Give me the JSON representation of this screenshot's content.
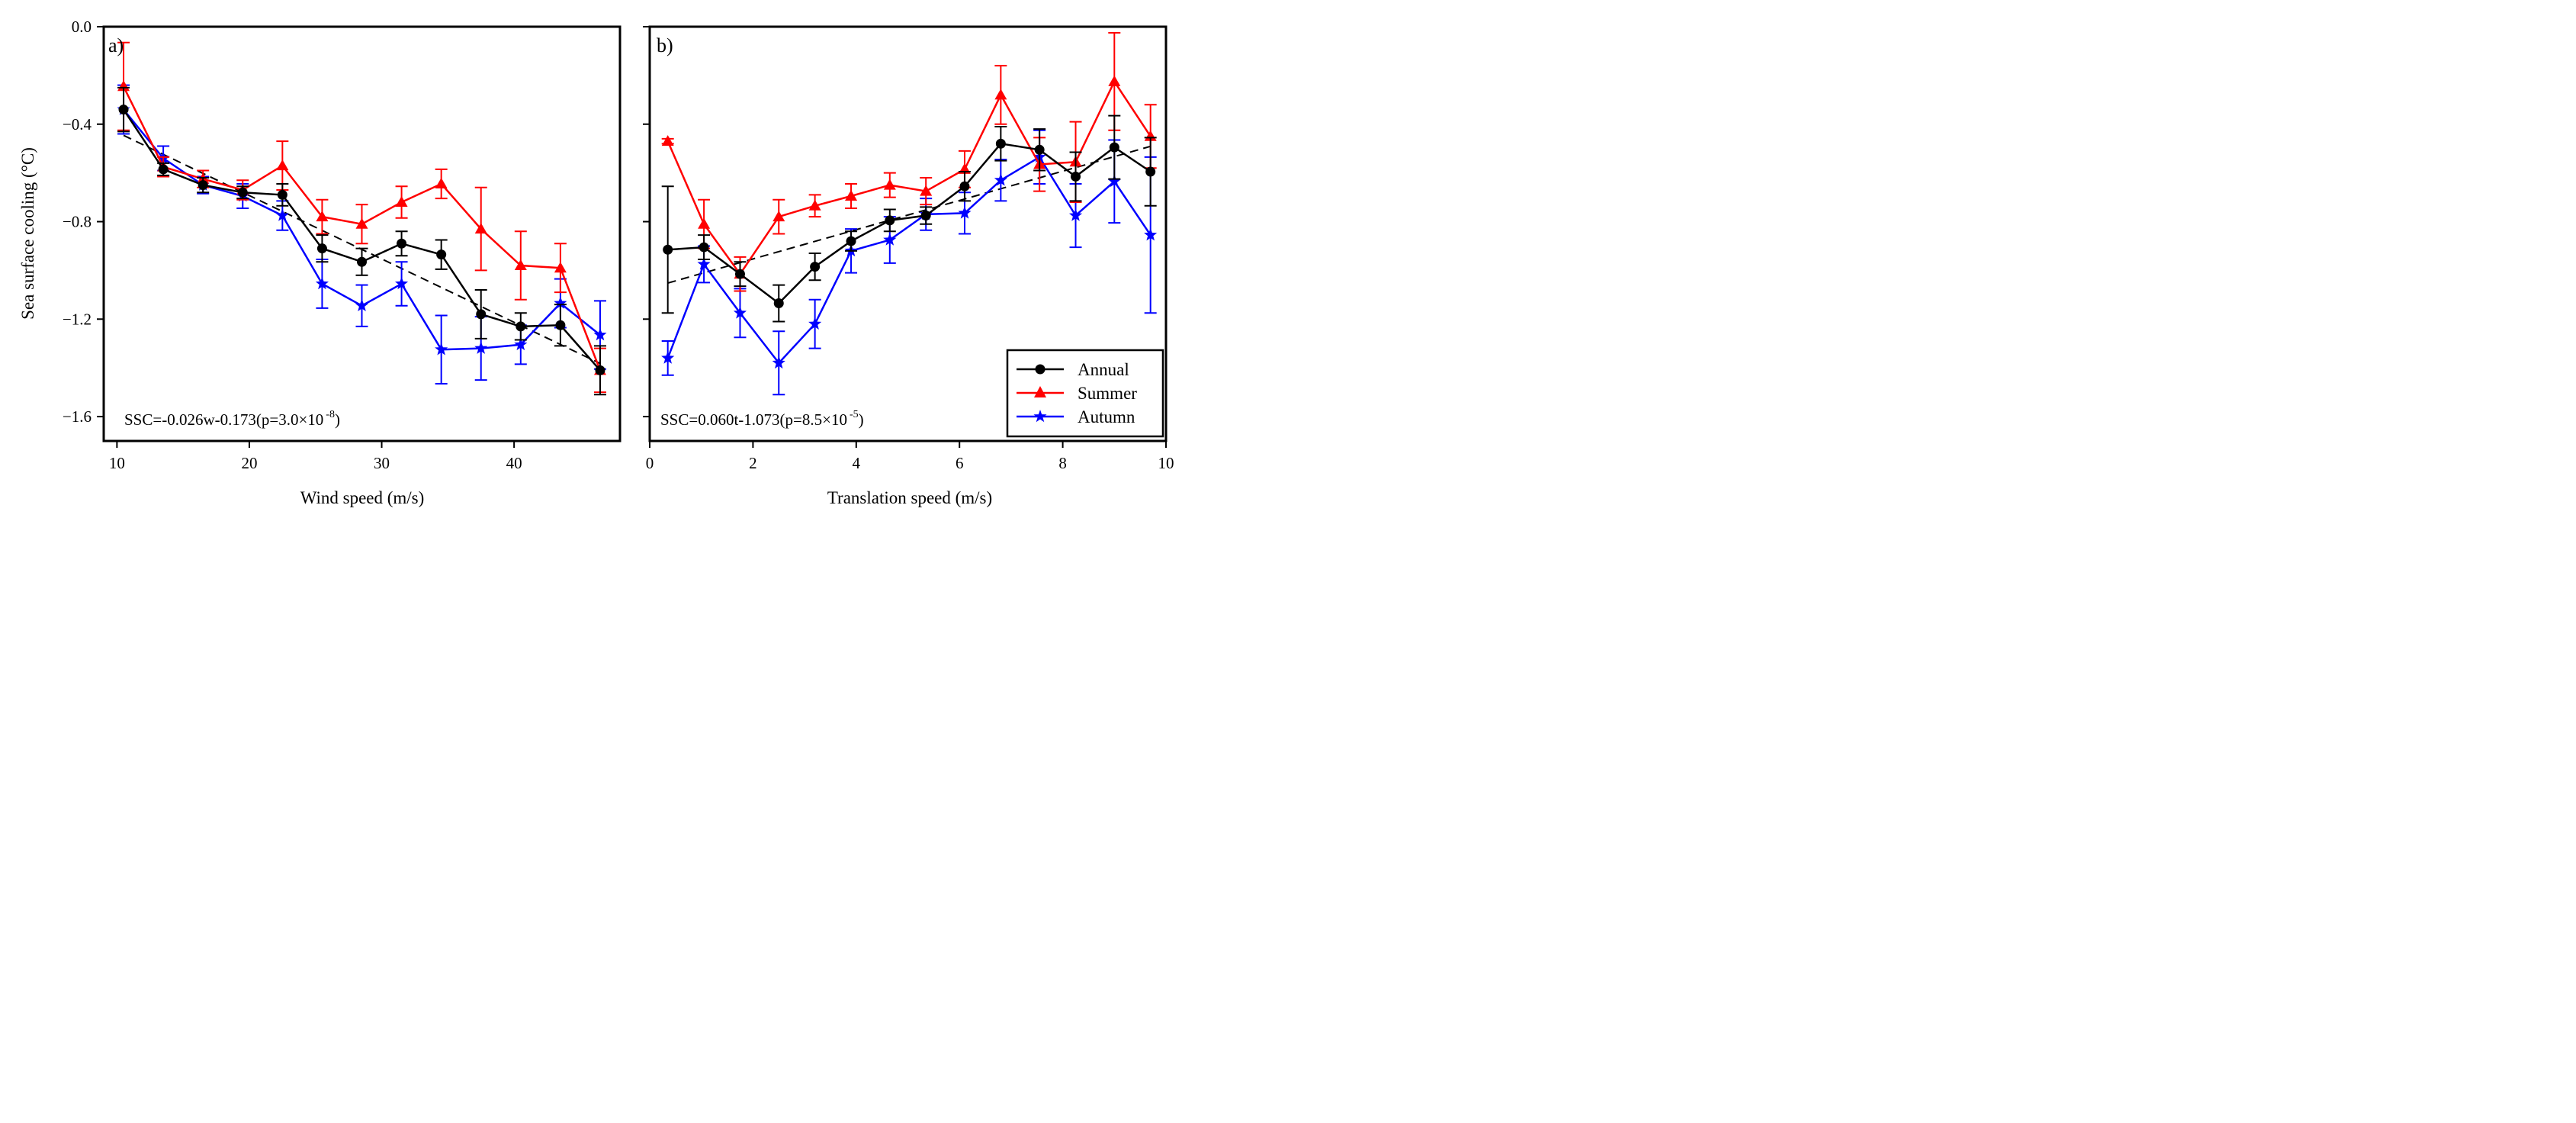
{
  "chart_data": [
    {
      "type": "line",
      "panel_label": "a)",
      "xlabel": "Wind speed (m/s)",
      "ylabel": "Sea surface cooling (°C)",
      "xlim": [
        9,
        48
      ],
      "ylim": [
        -1.7,
        0.0
      ],
      "xticks": [
        10,
        20,
        30,
        40
      ],
      "yticks": [
        0.0,
        -0.4,
        -0.8,
        -1.2,
        -1.6
      ],
      "ytick_labels": [
        "0.0",
        "-0.4",
        "-0.8",
        "-1.2",
        "-1.6"
      ],
      "x": [
        10.5,
        13.5,
        16.5,
        19.5,
        22.5,
        25.5,
        28.5,
        31.5,
        34.5,
        37.5,
        40.5,
        43.5,
        46.5
      ],
      "series": [
        {
          "name": "Annual",
          "color": "#000000",
          "marker": "circle",
          "values": [
            -0.34,
            -0.585,
            -0.65,
            -0.68,
            -0.69,
            -0.91,
            -0.965,
            -0.89,
            -0.935,
            -1.18,
            -1.23,
            -1.225,
            -1.41
          ],
          "errors": [
            0.09,
            0.025,
            0.03,
            0.025,
            0.045,
            0.055,
            0.055,
            0.05,
            0.06,
            0.1,
            0.055,
            0.085,
            0.1
          ]
        },
        {
          "name": "Summer",
          "color": "#ff0000",
          "marker": "triangle",
          "values": [
            -0.245,
            -0.575,
            -0.625,
            -0.67,
            -0.57,
            -0.78,
            -0.81,
            -0.72,
            -0.645,
            -0.83,
            -0.98,
            -0.99,
            -1.41
          ],
          "errors": [
            0.18,
            0.04,
            0.035,
            0.04,
            0.1,
            0.07,
            0.08,
            0.065,
            0.06,
            0.17,
            0.14,
            0.1,
            0.09
          ]
        },
        {
          "name": "Autumn",
          "color": "#0000ff",
          "marker": "star",
          "values": [
            -0.34,
            -0.54,
            -0.65,
            -0.695,
            -0.775,
            -1.055,
            -1.145,
            -1.055,
            -1.325,
            -1.32,
            -1.305,
            -1.135,
            -1.265
          ],
          "errors": [
            0.1,
            0.05,
            0.035,
            0.05,
            0.06,
            0.1,
            0.085,
            0.09,
            0.14,
            0.13,
            0.08,
            0.1,
            0.14
          ]
        }
      ],
      "fit": {
        "label": "linear fit",
        "x": [
          10.5,
          46.5
        ],
        "y": [
          -0.446,
          -1.382
        ]
      },
      "annotation": {
        "prefix": "SSC=-0.026w-0.173(p=3.0×10",
        "exponent": "-8",
        "suffix": ")"
      }
    },
    {
      "type": "line",
      "panel_label": "b)",
      "xlabel": "Translation speed (m/s)",
      "ylabel": "",
      "xlim": [
        0,
        10
      ],
      "ylim": [
        -1.7,
        0.0
      ],
      "xticks": [
        0,
        2,
        4,
        6,
        8,
        10
      ],
      "yticks": [
        0.0,
        -0.4,
        -0.8,
        -1.2,
        -1.6
      ],
      "x": [
        0.35,
        1.05,
        1.75,
        2.5,
        3.2,
        3.9,
        4.65,
        5.35,
        6.1,
        6.8,
        7.55,
        8.25,
        9.0,
        9.7
      ],
      "series": [
        {
          "name": "Annual",
          "color": "#000000",
          "marker": "circle",
          "values": [
            -0.915,
            -0.905,
            -1.015,
            -1.135,
            -0.985,
            -0.88,
            -0.795,
            -0.775,
            -0.655,
            -0.48,
            -0.505,
            -0.615,
            -0.495,
            -0.595
          ],
          "errors": [
            0.26,
            0.05,
            0.05,
            0.075,
            0.055,
            0.04,
            0.045,
            0.035,
            0.06,
            0.07,
            0.085,
            0.1,
            0.13,
            0.14
          ]
        },
        {
          "name": "Summer",
          "color": "#ff0000",
          "marker": "triangle",
          "values": [
            -0.47,
            -0.81,
            -1.015,
            -0.78,
            -0.735,
            -0.695,
            -0.65,
            -0.675,
            -0.585,
            -0.28,
            -0.565,
            -0.555,
            -0.225,
            -0.45
          ],
          "errors": [
            0.01,
            0.1,
            0.07,
            0.07,
            0.045,
            0.05,
            0.05,
            0.055,
            0.075,
            0.12,
            0.11,
            0.165,
            0.2,
            0.13
          ]
        },
        {
          "name": "Autumn",
          "color": "#0000ff",
          "marker": "star",
          "values": [
            -1.36,
            -0.975,
            -1.175,
            -1.38,
            -1.22,
            -0.92,
            -0.875,
            -0.77,
            -0.765,
            -0.63,
            -0.535,
            -0.775,
            -0.635,
            -0.855
          ],
          "errors": [
            0.07,
            0.075,
            0.1,
            0.13,
            0.1,
            0.09,
            0.095,
            0.065,
            0.085,
            0.085,
            0.11,
            0.13,
            0.17,
            0.32
          ]
        }
      ],
      "fit": {
        "label": "linear fit",
        "x": [
          0.35,
          9.7
        ],
        "y": [
          -1.052,
          -0.491
        ]
      },
      "annotation": {
        "prefix": "SSC=0.060t-1.073(p=8.5×10",
        "exponent": "-5",
        "suffix": ")"
      },
      "legend": {
        "placement": "bottom-right",
        "entries": [
          "Annual",
          "Summer",
          "Autumn"
        ]
      }
    }
  ]
}
